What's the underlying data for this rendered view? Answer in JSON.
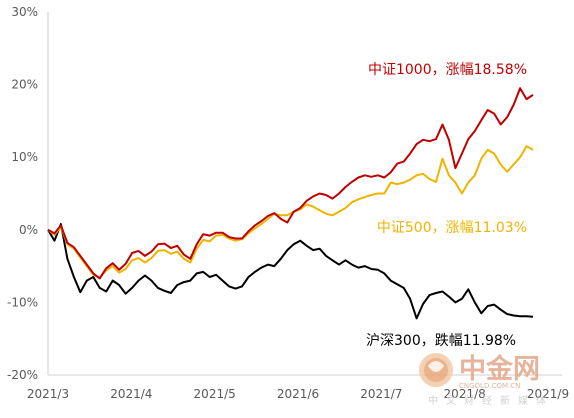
{
  "chart_data": {
    "type": "line",
    "x_ticks": [
      "2021/3",
      "2021/4",
      "2021/5",
      "2021/6",
      "2021/7",
      "2021/8",
      "2021/9"
    ],
    "y_ticks": [
      "30%",
      "20%",
      "10%",
      "0%",
      "-10%",
      "-20%"
    ],
    "ylim": [
      -20,
      30
    ],
    "y_unit": "%",
    "grid": false,
    "series": [
      {
        "name": "中证1000",
        "label": "中证1000，涨幅18.58%",
        "color": "#c00000",
        "points": [
          [
            0,
            0
          ],
          [
            2,
            -0.5
          ],
          [
            4,
            0.6
          ],
          [
            6,
            -1.8
          ],
          [
            8,
            -2.4
          ],
          [
            10,
            -3.6
          ],
          [
            12,
            -4.8
          ],
          [
            14,
            -6.0
          ],
          [
            16,
            -6.7
          ],
          [
            18,
            -5.3
          ],
          [
            20,
            -4.6
          ],
          [
            22,
            -5.5
          ],
          [
            24,
            -4.7
          ],
          [
            26,
            -3.2
          ],
          [
            28,
            -2.9
          ],
          [
            30,
            -3.6
          ],
          [
            32,
            -3.0
          ],
          [
            34,
            -2.0
          ],
          [
            36,
            -1.9
          ],
          [
            38,
            -2.5
          ],
          [
            40,
            -2.2
          ],
          [
            42,
            -3.4
          ],
          [
            44,
            -4.0
          ],
          [
            46,
            -2.0
          ],
          [
            48,
            -0.6
          ],
          [
            50,
            -0.8
          ],
          [
            52,
            -0.4
          ],
          [
            54,
            -0.4
          ],
          [
            56,
            -1.0
          ],
          [
            58,
            -1.2
          ],
          [
            60,
            -1.2
          ],
          [
            62,
            -0.2
          ],
          [
            64,
            0.6
          ],
          [
            66,
            1.2
          ],
          [
            68,
            1.9
          ],
          [
            70,
            2.3
          ],
          [
            72,
            1.5
          ],
          [
            74,
            1.0
          ],
          [
            76,
            2.5
          ],
          [
            78,
            3.0
          ],
          [
            80,
            4.0
          ],
          [
            82,
            4.6
          ],
          [
            84,
            5.0
          ],
          [
            86,
            4.8
          ],
          [
            88,
            4.3
          ],
          [
            90,
            5.0
          ],
          [
            92,
            5.9
          ],
          [
            94,
            6.6
          ],
          [
            96,
            7.2
          ],
          [
            98,
            7.5
          ],
          [
            100,
            7.3
          ],
          [
            102,
            7.5
          ],
          [
            104,
            7.2
          ],
          [
            106,
            7.9
          ],
          [
            108,
            9.1
          ],
          [
            110,
            9.4
          ],
          [
            112,
            10.5
          ],
          [
            114,
            11.8
          ],
          [
            116,
            12.4
          ],
          [
            118,
            12.2
          ],
          [
            120,
            12.5
          ],
          [
            122,
            14.5
          ],
          [
            124,
            12.4
          ],
          [
            126,
            8.5
          ],
          [
            128,
            10.5
          ],
          [
            130,
            12.5
          ],
          [
            132,
            13.6
          ],
          [
            134,
            15.1
          ],
          [
            136,
            16.5
          ],
          [
            138,
            16.0
          ],
          [
            140,
            14.5
          ],
          [
            142,
            15.5
          ],
          [
            144,
            17.2
          ],
          [
            146,
            19.5
          ],
          [
            148,
            18.0
          ],
          [
            150,
            18.58
          ]
        ]
      },
      {
        "name": "中证500",
        "label": "中证500，涨幅11.03%",
        "color": "#f0b400",
        "points": [
          [
            0,
            0
          ],
          [
            2,
            -0.7
          ],
          [
            4,
            0.4
          ],
          [
            6,
            -2.0
          ],
          [
            8,
            -2.6
          ],
          [
            10,
            -3.8
          ],
          [
            12,
            -5.0
          ],
          [
            14,
            -6.2
          ],
          [
            16,
            -6.6
          ],
          [
            18,
            -5.6
          ],
          [
            20,
            -5.0
          ],
          [
            22,
            -5.9
          ],
          [
            24,
            -5.4
          ],
          [
            26,
            -4.2
          ],
          [
            28,
            -3.9
          ],
          [
            30,
            -4.5
          ],
          [
            32,
            -3.9
          ],
          [
            34,
            -2.9
          ],
          [
            36,
            -2.8
          ],
          [
            38,
            -3.3
          ],
          [
            40,
            -3.0
          ],
          [
            42,
            -4.0
          ],
          [
            44,
            -4.5
          ],
          [
            46,
            -2.6
          ],
          [
            48,
            -1.4
          ],
          [
            50,
            -1.6
          ],
          [
            52,
            -0.8
          ],
          [
            54,
            -0.7
          ],
          [
            56,
            -1.2
          ],
          [
            58,
            -1.5
          ],
          [
            60,
            -1.3
          ],
          [
            62,
            -0.5
          ],
          [
            64,
            0.2
          ],
          [
            66,
            0.8
          ],
          [
            68,
            1.5
          ],
          [
            70,
            2.2
          ],
          [
            72,
            2.0
          ],
          [
            74,
            2.0
          ],
          [
            76,
            2.5
          ],
          [
            78,
            2.8
          ],
          [
            80,
            3.5
          ],
          [
            82,
            3.2
          ],
          [
            84,
            2.7
          ],
          [
            86,
            2.2
          ],
          [
            88,
            2.0
          ],
          [
            90,
            2.5
          ],
          [
            92,
            3.0
          ],
          [
            94,
            3.8
          ],
          [
            96,
            4.2
          ],
          [
            98,
            4.5
          ],
          [
            100,
            4.8
          ],
          [
            102,
            5.0
          ],
          [
            104,
            5.0
          ],
          [
            106,
            6.5
          ],
          [
            108,
            6.3
          ],
          [
            110,
            6.5
          ],
          [
            112,
            6.9
          ],
          [
            114,
            7.5
          ],
          [
            116,
            7.7
          ],
          [
            118,
            7.0
          ],
          [
            120,
            6.6
          ],
          [
            122,
            9.8
          ],
          [
            124,
            7.5
          ],
          [
            126,
            6.5
          ],
          [
            128,
            5.0
          ],
          [
            130,
            6.5
          ],
          [
            132,
            7.5
          ],
          [
            134,
            9.8
          ],
          [
            136,
            11.0
          ],
          [
            138,
            10.5
          ],
          [
            140,
            9.0
          ],
          [
            142,
            8.0
          ],
          [
            144,
            9.0
          ],
          [
            146,
            10.0
          ],
          [
            148,
            11.5
          ],
          [
            150,
            11.03
          ]
        ]
      },
      {
        "name": "沪深300",
        "label": "沪深300，跌幅11.98%",
        "color": "#000000",
        "points": [
          [
            0,
            0
          ],
          [
            2,
            -1.5
          ],
          [
            4,
            0.8
          ],
          [
            6,
            -4.0
          ],
          [
            8,
            -6.5
          ],
          [
            10,
            -8.6
          ],
          [
            12,
            -7.0
          ],
          [
            14,
            -6.5
          ],
          [
            16,
            -8.0
          ],
          [
            18,
            -8.5
          ],
          [
            20,
            -7.0
          ],
          [
            22,
            -7.6
          ],
          [
            24,
            -8.8
          ],
          [
            26,
            -8.0
          ],
          [
            28,
            -7.0
          ],
          [
            30,
            -6.3
          ],
          [
            32,
            -7.0
          ],
          [
            34,
            -8.0
          ],
          [
            36,
            -8.4
          ],
          [
            38,
            -8.7
          ],
          [
            40,
            -7.6
          ],
          [
            42,
            -7.2
          ],
          [
            44,
            -7.0
          ],
          [
            46,
            -6.0
          ],
          [
            48,
            -5.8
          ],
          [
            50,
            -6.5
          ],
          [
            52,
            -6.2
          ],
          [
            54,
            -7.0
          ],
          [
            56,
            -7.8
          ],
          [
            58,
            -8.1
          ],
          [
            60,
            -7.8
          ],
          [
            62,
            -6.5
          ],
          [
            64,
            -5.8
          ],
          [
            66,
            -5.2
          ],
          [
            68,
            -4.8
          ],
          [
            70,
            -5.0
          ],
          [
            72,
            -4.0
          ],
          [
            74,
            -2.8
          ],
          [
            76,
            -2.0
          ],
          [
            78,
            -1.5
          ],
          [
            80,
            -2.2
          ],
          [
            82,
            -2.8
          ],
          [
            84,
            -2.6
          ],
          [
            86,
            -3.6
          ],
          [
            88,
            -4.2
          ],
          [
            90,
            -4.8
          ],
          [
            92,
            -4.2
          ],
          [
            94,
            -4.8
          ],
          [
            96,
            -5.2
          ],
          [
            98,
            -5.0
          ],
          [
            100,
            -5.4
          ],
          [
            102,
            -5.5
          ],
          [
            104,
            -6.0
          ],
          [
            106,
            -7.0
          ],
          [
            108,
            -7.5
          ],
          [
            110,
            -8.0
          ],
          [
            112,
            -9.5
          ],
          [
            114,
            -12.2
          ],
          [
            116,
            -10.2
          ],
          [
            118,
            -9.0
          ],
          [
            120,
            -8.7
          ],
          [
            122,
            -8.5
          ],
          [
            124,
            -9.2
          ],
          [
            126,
            -10.0
          ],
          [
            128,
            -9.5
          ],
          [
            130,
            -8.2
          ],
          [
            132,
            -10.0
          ],
          [
            134,
            -11.5
          ],
          [
            136,
            -10.5
          ],
          [
            138,
            -10.3
          ],
          [
            140,
            -11.0
          ],
          [
            142,
            -11.6
          ],
          [
            144,
            -11.8
          ],
          [
            146,
            -11.9
          ],
          [
            148,
            -11.9
          ],
          [
            150,
            -11.98
          ]
        ]
      }
    ]
  },
  "watermark": {
    "logo_text": "中金网",
    "domain_text": "CNGOLD.COM.CN",
    "tagline": "中文财经新媒体"
  }
}
